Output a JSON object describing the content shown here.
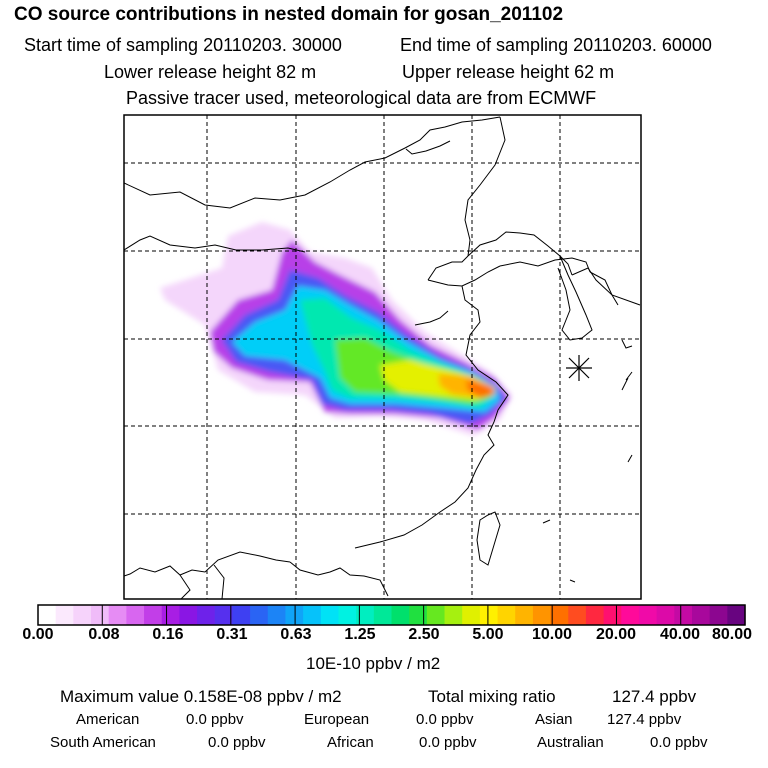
{
  "header": {
    "title": "CO  source contributions in nested domain for gosan_201102",
    "start_label": "Start time of sampling 20110203. 30000",
    "end_label": "End time of sampling 20110203. 60000",
    "lower_label": "Lower release height   82 m",
    "upper_label": "Upper release height   62 m",
    "note": "Passive tracer used, meteorological data are from ECMWF"
  },
  "map": {
    "marker": "receptor-star-gosan",
    "plume_peak_color": "#ff8c00"
  },
  "colorbar": {
    "unit": "10E-10 ppbv / m2",
    "ticks": [
      "0.00",
      "0.08",
      "0.16",
      "0.31",
      "0.63",
      "1.25",
      "2.50",
      "5.00",
      "10.00",
      "20.00",
      "40.00",
      "80.00"
    ],
    "colors": [
      "#ffffff",
      "#fbe9fd",
      "#f6d3fb",
      "#f0bcf9",
      "#e68cf4",
      "#d866f0",
      "#c23ee8",
      "#a81ee4",
      "#8a16e4",
      "#6e22ea",
      "#5630ee",
      "#3e40f2",
      "#2a64f4",
      "#1c84f6",
      "#10a4f8",
      "#06c2fa",
      "#00e2f6",
      "#00f2e2",
      "#00eec0",
      "#00e898",
      "#00e06c",
      "#20e040",
      "#66e820",
      "#a6f010",
      "#e0f000",
      "#fff000",
      "#ffd400",
      "#ffb400",
      "#ff9400",
      "#ff7000",
      "#ff4c20",
      "#ff2840",
      "#ff1070",
      "#ff0a9a",
      "#f00aa8",
      "#dc0aa8",
      "#c40aa4",
      "#a8089c",
      "#8c0690",
      "#680480"
    ]
  },
  "stats": {
    "max_label": "Maximum value  0.158E-08 ppbv / m2",
    "total_label": "Total mixing ratio",
    "total_value": "127.4 ppbv",
    "american_label": "American",
    "american_value": "0.0 ppbv",
    "european_label": "European",
    "european_value": "0.0 ppbv",
    "asian_label": "Asian",
    "asian_value": "127.4 ppbv",
    "south_american_label": "South American",
    "south_american_value": "0.0 ppbv",
    "african_label": "African",
    "african_value": "0.0 ppbv",
    "australian_label": "Australian",
    "australian_value": "0.0 ppbv"
  }
}
